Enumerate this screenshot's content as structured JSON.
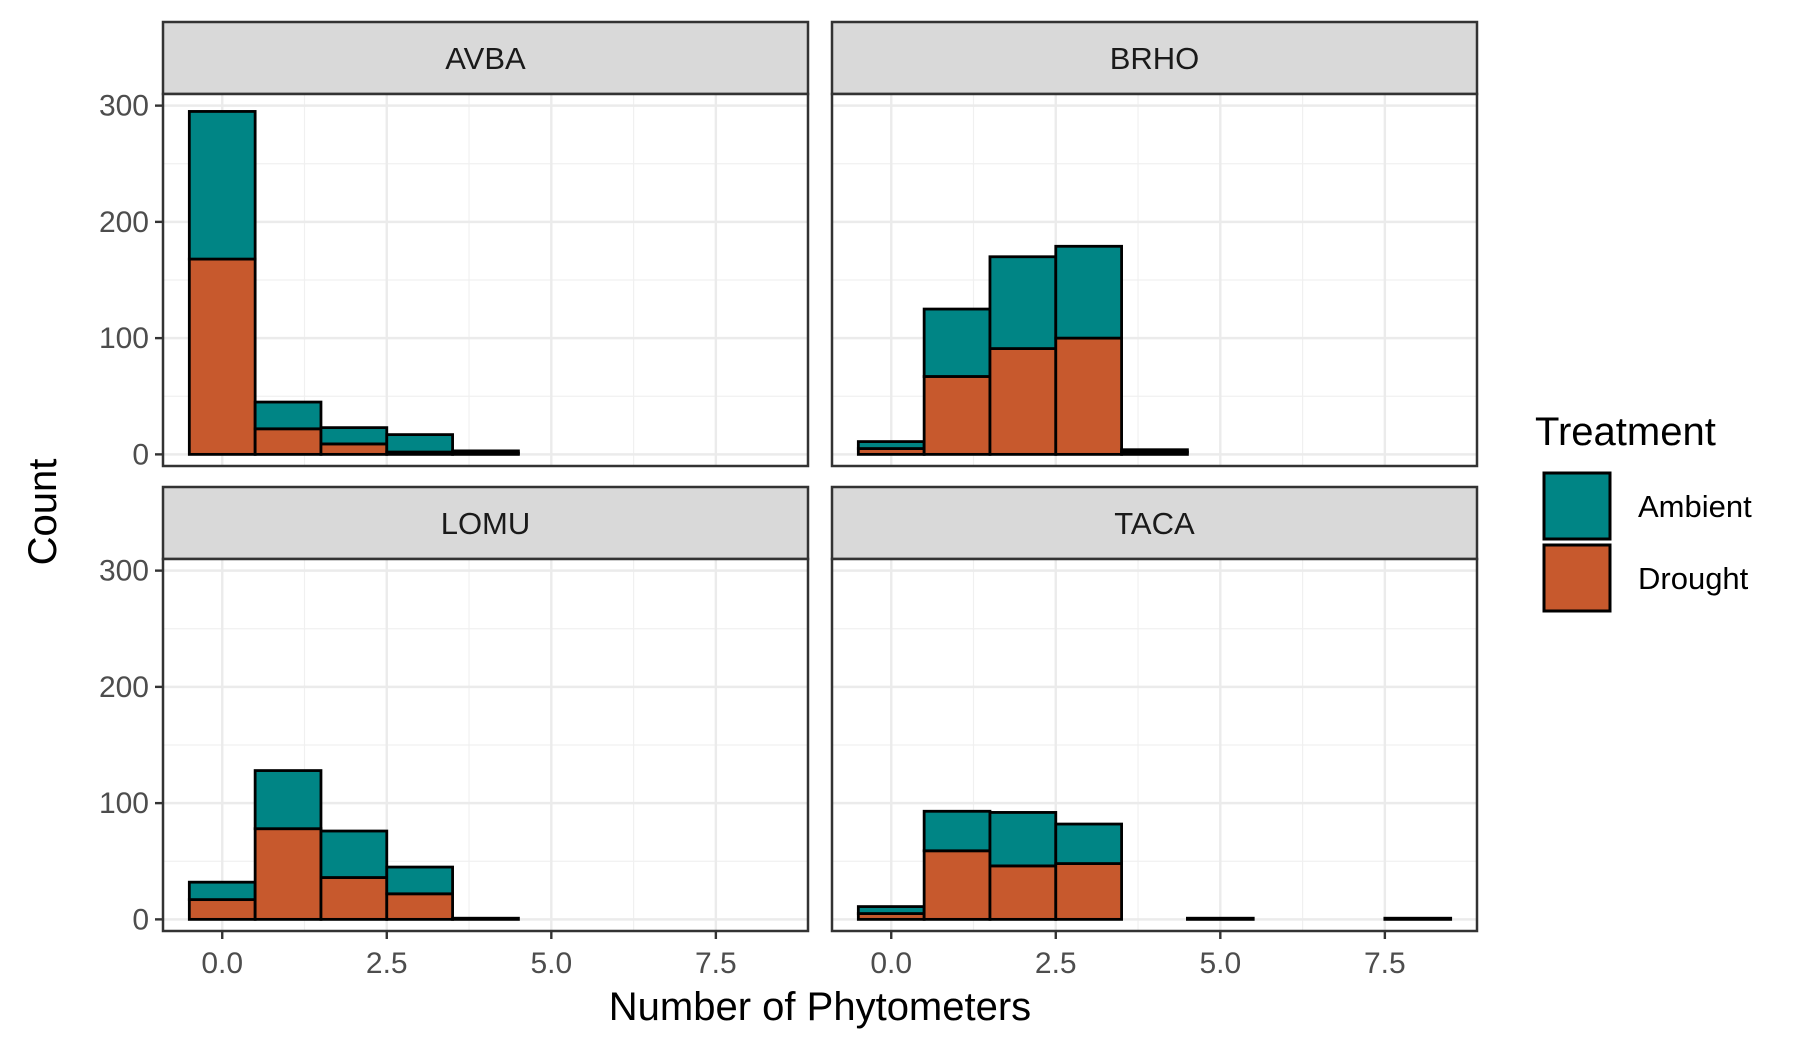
{
  "chart_data": {
    "type": "bar",
    "subtype": "stacked-histogram-facets",
    "xlabel": "Number of Phytometers",
    "ylabel": "Count",
    "xlim": [
      -0.9,
      8.9
    ],
    "ylim": [
      -10,
      310
    ],
    "x_ticks": [
      0,
      2.5,
      5,
      7.5
    ],
    "x_tick_labels": [
      "0.0",
      "2.5",
      "5.0",
      "7.5"
    ],
    "y_ticks": [
      0,
      100,
      200,
      300
    ],
    "y_tick_labels": [
      "0",
      "100",
      "200",
      "300"
    ],
    "grid": true,
    "bin_width": 1,
    "legend": {
      "title": "Treatment",
      "placement": "right",
      "entries": [
        {
          "name": "Ambient",
          "color": "#008585"
        },
        {
          "name": "Drought",
          "color": "#c7592d"
        }
      ]
    },
    "facets": [
      {
        "name": "AVBA",
        "bins": [
          0,
          1,
          2,
          3,
          4,
          5,
          6,
          7,
          8
        ],
        "series": [
          {
            "name": "Drought",
            "values": [
              168,
              22,
              9,
              2,
              1,
              0,
              0,
              0,
              0
            ]
          },
          {
            "name": "Ambient",
            "values": [
              127,
              23,
              14,
              15,
              2,
              0,
              0,
              0,
              0
            ]
          }
        ]
      },
      {
        "name": "BRHO",
        "bins": [
          0,
          1,
          2,
          3,
          4,
          5,
          6,
          7,
          8
        ],
        "series": [
          {
            "name": "Drought",
            "values": [
              5,
              67,
              91,
              100,
              2,
              0,
              0,
              0,
              0
            ]
          },
          {
            "name": "Ambient",
            "values": [
              6,
              58,
              79,
              79,
              2,
              0,
              0,
              0,
              0
            ]
          }
        ]
      },
      {
        "name": "LOMU",
        "bins": [
          0,
          1,
          2,
          3,
          4,
          5,
          6,
          7,
          8
        ],
        "series": [
          {
            "name": "Drought",
            "values": [
              17,
              78,
              36,
              22,
              1,
              0,
              0,
              0,
              0
            ]
          },
          {
            "name": "Ambient",
            "values": [
              15,
              50,
              40,
              23,
              0,
              0,
              0,
              0,
              0
            ]
          }
        ]
      },
      {
        "name": "TACA",
        "bins": [
          0,
          1,
          2,
          3,
          4,
          5,
          6,
          7,
          8
        ],
        "series": [
          {
            "name": "Drought",
            "values": [
              5,
              59,
              46,
              48,
              0,
              1,
              0,
              0,
              1
            ]
          },
          {
            "name": "Ambient",
            "values": [
              6,
              34,
              46,
              34,
              0,
              0,
              0,
              0,
              0
            ]
          }
        ]
      }
    ]
  }
}
